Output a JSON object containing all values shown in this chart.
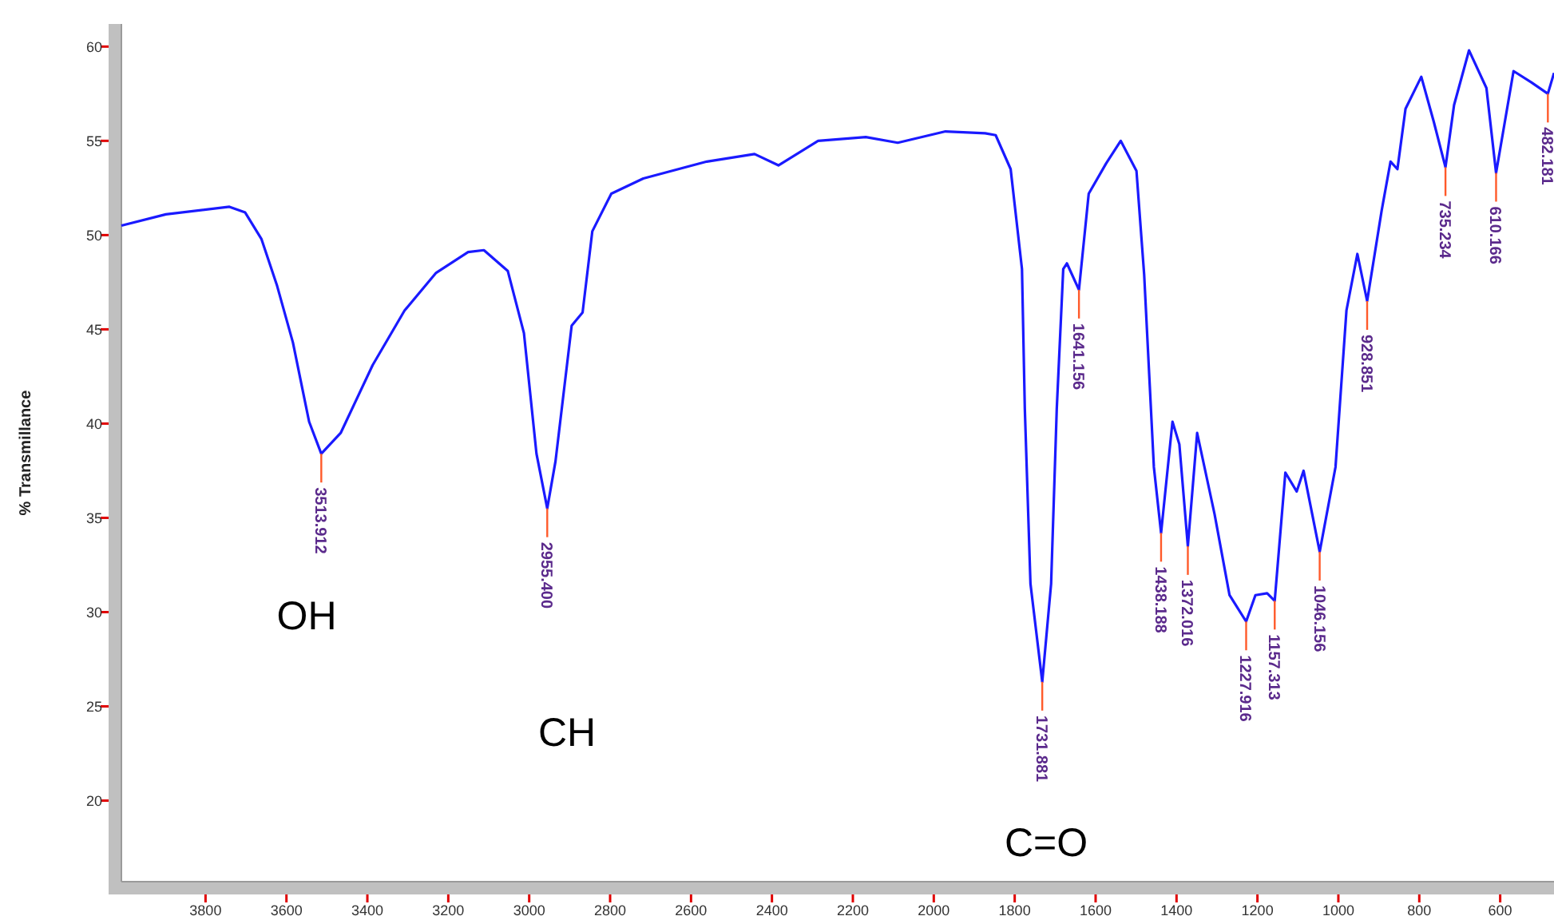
{
  "chart_data": {
    "type": "line",
    "ylabel": "% Transmillance",
    "xlim": [
      4008,
      467
    ],
    "ylim": [
      15.7,
      61.2
    ],
    "xticks": [
      3800,
      3600,
      3400,
      3200,
      3000,
      2800,
      2600,
      2400,
      2200,
      2000,
      1800,
      1600,
      1400,
      1200,
      1000,
      800,
      600
    ],
    "yticks": [
      20,
      25,
      30,
      35,
      40,
      45,
      50,
      55,
      60
    ],
    "grid": false,
    "marker": "none",
    "line_style": "solid",
    "series": [
      {
        "color": "#1a1aff",
        "x": [
          4008,
          3898,
          3741,
          3702,
          3662,
          3623,
          3584,
          3544,
          3513.912,
          3466,
          3387,
          3308,
          3230,
          3151,
          3112,
          3053,
          3013,
          2982,
          2955.4,
          2935,
          2895,
          2868,
          2844,
          2797,
          2718,
          2561,
          2443,
          2384,
          2286,
          2168,
          2089,
          1971,
          1873,
          1847,
          1810,
          1782,
          1775,
          1761,
          1731.881,
          1710,
          1696,
          1680,
          1671,
          1641.156,
          1617,
          1574,
          1538,
          1499,
          1480,
          1456,
          1438.188,
          1410,
          1393,
          1372.016,
          1349,
          1306,
          1269,
          1227.916,
          1205,
          1176,
          1157.313,
          1131,
          1103,
          1086,
          1046.156,
          1007,
          980,
          953,
          928.851,
          893,
          871,
          854,
          834,
          795,
          764,
          735.234,
          714,
          677,
          634,
          610.166,
          567,
          523,
          482.181,
          467
        ],
        "values": [
          50.5,
          51.1,
          51.5,
          51.2,
          49.8,
          47.3,
          44.3,
          40.1,
          38.4,
          39.5,
          43.1,
          46.0,
          48.0,
          49.1,
          49.2,
          48.1,
          44.8,
          38.4,
          35.5,
          38.0,
          45.2,
          45.9,
          50.2,
          52.2,
          53.0,
          53.9,
          54.3,
          53.7,
          55.0,
          55.2,
          54.9,
          55.5,
          55.4,
          55.3,
          53.5,
          48.2,
          40.8,
          31.5,
          26.3,
          31.5,
          40.8,
          48.2,
          48.5,
          47.1,
          52.2,
          53.8,
          55.0,
          53.4,
          47.9,
          37.7,
          34.2,
          40.1,
          38.9,
          33.5,
          39.5,
          35.2,
          30.9,
          29.5,
          30.9,
          31.0,
          30.6,
          37.4,
          36.4,
          37.5,
          33.2,
          37.7,
          46.0,
          49.0,
          46.5,
          51.3,
          53.9,
          53.5,
          56.7,
          58.4,
          56.0,
          53.6,
          56.9,
          59.8,
          57.8,
          53.3,
          58.7,
          58.1,
          57.5,
          58.6
        ]
      }
    ],
    "annotations": [
      {
        "text": "3513.912",
        "x": 3513.912,
        "y": 38.4
      },
      {
        "text": "2955.400",
        "x": 2955.4,
        "y": 35.5
      },
      {
        "text": "1731.881",
        "x": 1731.881,
        "y": 26.3
      },
      {
        "text": "1641.156",
        "x": 1641.156,
        "y": 47.1
      },
      {
        "text": "1438.188",
        "x": 1438.188,
        "y": 34.2
      },
      {
        "text": "1372.016",
        "x": 1372.016,
        "y": 33.5
      },
      {
        "text": "1227.916",
        "x": 1227.916,
        "y": 29.5
      },
      {
        "text": "1157.313",
        "x": 1157.313,
        "y": 30.6
      },
      {
        "text": "1046.156",
        "x": 1046.156,
        "y": 33.2
      },
      {
        "text": "928.851",
        "x": 928.851,
        "y": 46.5
      },
      {
        "text": "735.234",
        "x": 735.234,
        "y": 53.6
      },
      {
        "text": "610.166",
        "x": 610.166,
        "y": 53.3
      },
      {
        "text": "482.181",
        "x": 482.181,
        "y": 57.5
      },
      "OH",
      "CH",
      "C=O"
    ]
  }
}
